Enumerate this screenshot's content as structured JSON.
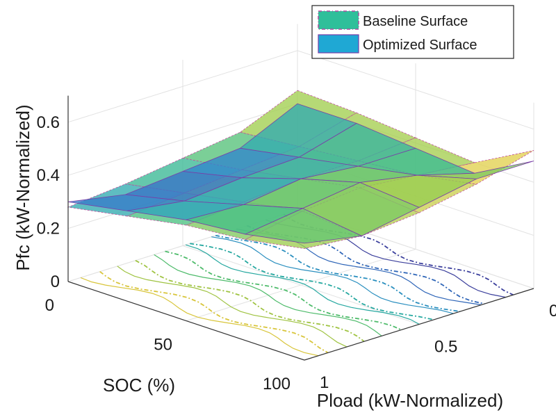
{
  "chart_data": {
    "type": "surface3d",
    "title": "",
    "xlabel": "SOC (%)",
    "ylabel": "Pload (kW-Normalized)",
    "zlabel": "Pfc (kW-Normalized)",
    "xlim": [
      0,
      100
    ],
    "ylim": [
      0,
      1
    ],
    "zlim": [
      0,
      0.7
    ],
    "x_ticks": [
      0,
      50,
      100
    ],
    "y_ticks": [
      0,
      0.5,
      1
    ],
    "z_ticks": [
      0,
      0.2,
      0.4,
      0.6
    ],
    "x_tick_labels": [
      "0",
      "50",
      "100"
    ],
    "y_tick_labels": [
      "0",
      "0.5",
      "1"
    ],
    "z_tick_labels": [
      "0",
      "0.2",
      "0.4",
      "0.6"
    ],
    "grid": true,
    "legend_position": "top-right",
    "series": [
      {
        "name": "Baseline Surface",
        "color": "#2fbf9a",
        "style": "surface with dash-dot contour projection",
        "soc": [
          0,
          25,
          50,
          75,
          100
        ],
        "pload": [
          0,
          0.25,
          0.5,
          0.75,
          1
        ],
        "pfc": [
          [
            0.45,
            0.44,
            0.42,
            0.4,
            0.52
          ],
          [
            0.36,
            0.38,
            0.4,
            0.42,
            0.46
          ],
          [
            0.33,
            0.36,
            0.4,
            0.44,
            0.42
          ],
          [
            0.3,
            0.34,
            0.38,
            0.42,
            0.4
          ],
          [
            0.28,
            0.32,
            0.36,
            0.38,
            0.42
          ]
        ]
      },
      {
        "name": "Optimized Surface",
        "color": "#1fa8d4",
        "style": "surface with solid contour projection",
        "soc": [
          0,
          25,
          50,
          75,
          100
        ],
        "pload": [
          0,
          0.25,
          0.5,
          0.75,
          1
        ],
        "pfc": [
          [
            0.4,
            0.4,
            0.38,
            0.36,
            0.48
          ],
          [
            0.3,
            0.34,
            0.38,
            0.42,
            0.48
          ],
          [
            0.28,
            0.33,
            0.4,
            0.46,
            0.44
          ],
          [
            0.26,
            0.31,
            0.37,
            0.43,
            0.4
          ],
          [
            0.3,
            0.34,
            0.38,
            0.4,
            0.44
          ]
        ]
      }
    ]
  }
}
